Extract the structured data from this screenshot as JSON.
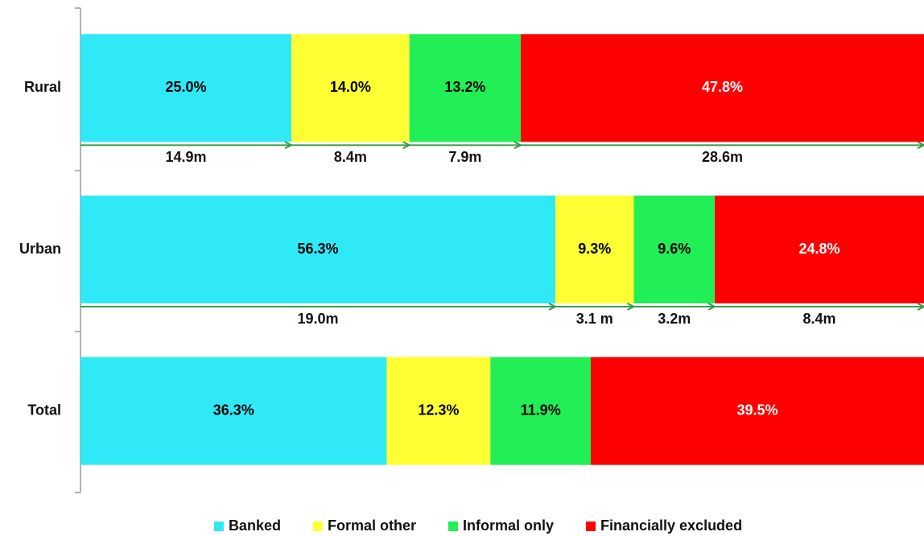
{
  "chart_data": {
    "type": "stacked-barh",
    "categories": [
      "Rural",
      "Urban",
      "Total"
    ],
    "xlim": [
      0,
      100
    ],
    "series": [
      {
        "name": "Banked",
        "color": "#2fe9f7",
        "label_color": "#000000",
        "values": [
          25.0,
          56.3,
          36.3
        ],
        "value_labels": [
          "25.0%",
          "56.3%",
          "36.3%"
        ],
        "count_labels": [
          "14.9m",
          "19.0m",
          null
        ]
      },
      {
        "name": "Formal other",
        "color": "#ffff33",
        "label_color": "#000000",
        "values": [
          14.0,
          9.3,
          12.3
        ],
        "value_labels": [
          "14.0%",
          "9.3%",
          "12.3%"
        ],
        "count_labels": [
          "8.4m",
          "3.1 m",
          null
        ]
      },
      {
        "name": "Informal only",
        "color": "#22ee55",
        "label_color": "#000000",
        "values": [
          13.2,
          9.6,
          11.9
        ],
        "value_labels": [
          "13.2%",
          "9.6%",
          "11.9%"
        ],
        "count_labels": [
          "7.9m",
          "3.2m",
          null
        ]
      },
      {
        "name": "Financially excluded",
        "color": "#ff0000",
        "label_color": "#ffffff",
        "values": [
          47.8,
          24.8,
          39.5
        ],
        "value_labels": [
          "47.8%",
          "24.8%",
          "39.5%"
        ],
        "count_labels": [
          "28.6m",
          "8.4m",
          null
        ]
      }
    ],
    "legend": "bottom"
  }
}
